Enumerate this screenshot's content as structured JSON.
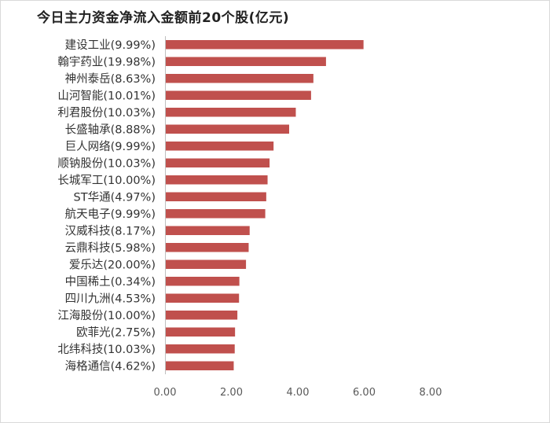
{
  "chart_data": {
    "type": "bar",
    "orientation": "horizontal",
    "title": "今日主力资金净流入金额前20个股(亿元)",
    "categories": [
      "建设工业(9.99%)",
      "翰宇药业(19.98%)",
      "神州泰岳(8.63%)",
      "山河智能(10.01%)",
      "利君股份(10.03%)",
      "长盛轴承(8.88%)",
      "巨人网络(9.99%)",
      "顺钠股份(10.03%)",
      "长城军工(10.00%)",
      "ST华通(4.97%)",
      "航天电子(9.99%)",
      "汉威科技(8.17%)",
      "云鼎科技(5.98%)",
      "爱乐达(20.00%)",
      "中国稀土(0.34%)",
      "四川九洲(4.53%)",
      "江海股份(10.00%)",
      "欧菲光(2.75%)",
      "北纬科技(10.03%)",
      "海格通信(4.62%)"
    ],
    "values": [
      5.98,
      4.85,
      4.47,
      4.4,
      3.94,
      3.74,
      3.27,
      3.15,
      3.09,
      3.05,
      3.02,
      2.55,
      2.52,
      2.44,
      2.24,
      2.23,
      2.18,
      2.11,
      2.1,
      2.07
    ],
    "xlim": [
      0,
      8
    ],
    "xticks": [
      "0.00",
      "2.00",
      "4.00",
      "6.00",
      "8.00"
    ],
    "bar_color": "#c0504d",
    "grid": false
  }
}
